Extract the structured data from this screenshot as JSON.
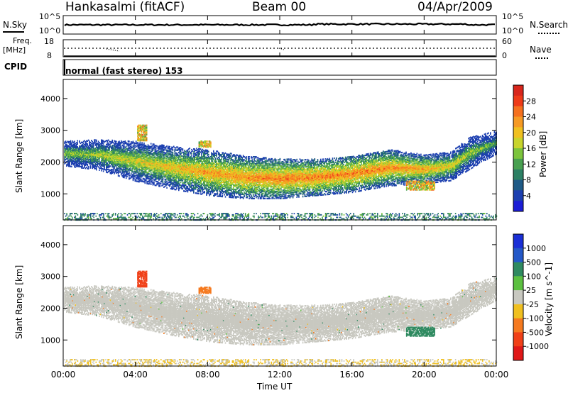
{
  "header": {
    "station": "Hankasalmi (fitACF)",
    "beam": "Beam 00",
    "date": "04/Apr/2009"
  },
  "strip": {
    "nsky_label": "N.Sky",
    "nsky_top": "10^5",
    "nsky_bottom": "10^0",
    "nsearch_label": "N.Search",
    "nsearch_top": "10^5",
    "nsearch_bottom": "10^0",
    "freq_label": "Freq.",
    "freq_unit": "[MHz]",
    "freq_top": "18",
    "freq_bottom": "8",
    "nave_label": "Nave",
    "nave_top": "60",
    "nave_bottom": "0",
    "cpid_label": "CPID",
    "cpid_value": "normal (fast stereo) 153"
  },
  "chart_data": [
    {
      "type": "heatmap",
      "name": "power",
      "ylabel": "Slant Range [km]",
      "xlabel": "Time UT",
      "xlim": [
        0,
        24
      ],
      "ylim": [
        180,
        4600
      ],
      "yticks": [
        1000,
        2000,
        3000,
        4000
      ],
      "colorbar": {
        "label": "Power [dB]",
        "ticks": [
          "28",
          "24",
          "20",
          "16",
          "12",
          "8",
          "4"
        ],
        "colors": [
          "#d8261c",
          "#ee3a18",
          "#f5701e",
          "#f69a24",
          "#f0c020",
          "#c8d42c",
          "#7cc43c",
          "#48a050",
          "#2c8064",
          "#1f5a86",
          "#1c3fb0",
          "#1b1dd6"
        ]
      },
      "echo_band": [
        {
          "t": 0.0,
          "center": 2300,
          "width": 320
        },
        {
          "t": 2.0,
          "center": 2250,
          "width": 400
        },
        {
          "t": 4.0,
          "center": 2050,
          "width": 520
        },
        {
          "t": 6.0,
          "center": 1850,
          "width": 560
        },
        {
          "t": 8.0,
          "center": 1700,
          "width": 600
        },
        {
          "t": 10.0,
          "center": 1550,
          "width": 560
        },
        {
          "t": 12.0,
          "center": 1500,
          "width": 520
        },
        {
          "t": 14.0,
          "center": 1550,
          "width": 480
        },
        {
          "t": 16.0,
          "center": 1650,
          "width": 480
        },
        {
          "t": 18.0,
          "center": 1850,
          "width": 480
        },
        {
          "t": 20.0,
          "center": 1800,
          "width": 380
        },
        {
          "t": 21.5,
          "center": 1900,
          "width": 380
        },
        {
          "t": 22.5,
          "center": 2300,
          "width": 420
        },
        {
          "t": 24.0,
          "center": 2650,
          "width": 300
        }
      ],
      "peak_power": [
        {
          "t": 0.0,
          "db": 14
        },
        {
          "t": 4.0,
          "db": 18
        },
        {
          "t": 8.0,
          "db": 22
        },
        {
          "t": 12.0,
          "db": 24
        },
        {
          "t": 16.0,
          "db": 24
        },
        {
          "t": 20.0,
          "db": 22
        },
        {
          "t": 24.0,
          "db": 12
        }
      ]
    },
    {
      "type": "heatmap",
      "name": "velocity",
      "ylabel": "Slant Range [km]",
      "xlabel": "Time UT",
      "xlim": [
        0,
        24
      ],
      "ylim": [
        180,
        4600
      ],
      "yticks": [
        1000,
        2000,
        3000,
        4000
      ],
      "xticks": [
        "00:00",
        "04:00",
        "08:00",
        "12:00",
        "16:00",
        "20:00",
        "00:00"
      ],
      "colorbar": {
        "label": "Velocity [m s^-1]",
        "ticks": [
          "1000",
          "500",
          "100",
          "25",
          "-25",
          "-100",
          "-500",
          "-1000"
        ],
        "colors": [
          "#1a2fd6",
          "#2458c8",
          "#2f8a60",
          "#5cc040",
          "#c8c8c0",
          "#f0c020",
          "#f57a20",
          "#f04018",
          "#e01818"
        ]
      },
      "features": [
        {
          "t0": 4.1,
          "t1": 4.6,
          "r0": 2700,
          "r1": 3200,
          "velocity": -500
        },
        {
          "t0": 19.0,
          "t1": 20.6,
          "r0": 1150,
          "r1": 1450,
          "velocity": 100
        },
        {
          "t0": 7.5,
          "t1": 8.2,
          "r0": 2500,
          "r1": 2700,
          "velocity": -100
        }
      ]
    }
  ]
}
